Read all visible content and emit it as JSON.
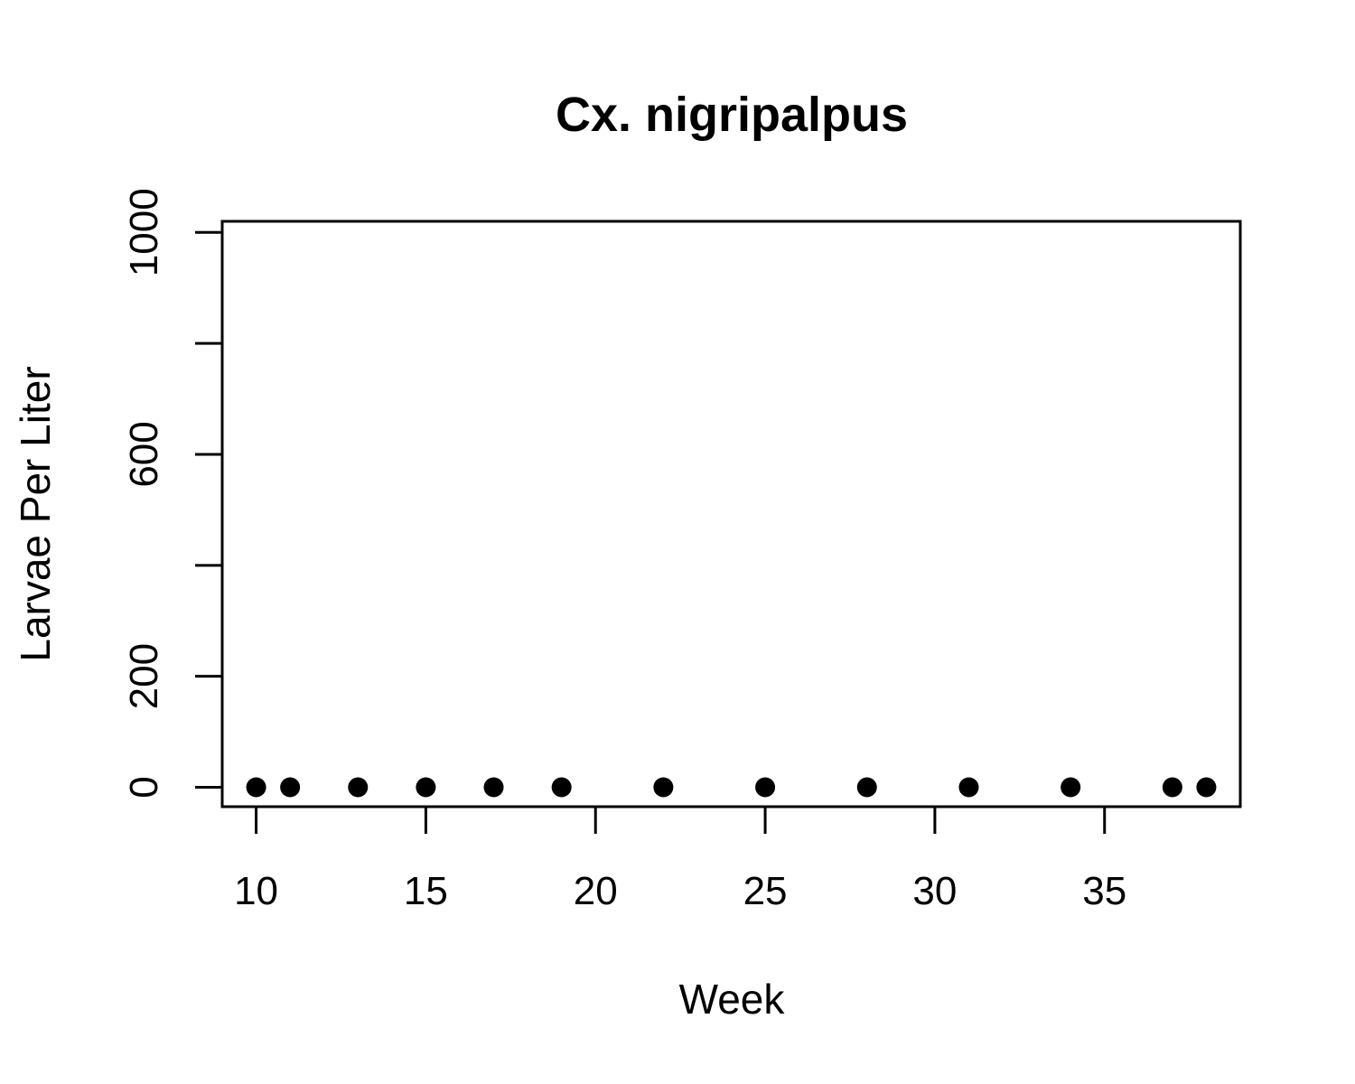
{
  "chart_data": {
    "type": "scatter",
    "title": "Cx. nigripalpus",
    "xlabel": "Week",
    "ylabel": "Larvae Per Liter",
    "xlim": [
      9,
      39
    ],
    "ylim": [
      -35,
      1020
    ],
    "x_ticks": [
      10,
      15,
      20,
      25,
      30,
      35
    ],
    "x_tick_labels": [
      "10",
      "15",
      "20",
      "25",
      "30",
      "35"
    ],
    "y_ticks": [
      0,
      200,
      400,
      600,
      800,
      1000
    ],
    "y_tick_labels": [
      "0",
      "200",
      "",
      "600",
      "",
      "1000"
    ],
    "grid": false,
    "legend": "none",
    "point_color": "#000000",
    "series": [
      {
        "x": [
          10,
          11,
          13,
          15,
          17,
          19,
          22,
          25,
          28,
          31,
          34,
          37,
          38
        ],
        "y": [
          0,
          0,
          0,
          0,
          0,
          0,
          0,
          0,
          0,
          0,
          0,
          0,
          0
        ]
      }
    ]
  }
}
